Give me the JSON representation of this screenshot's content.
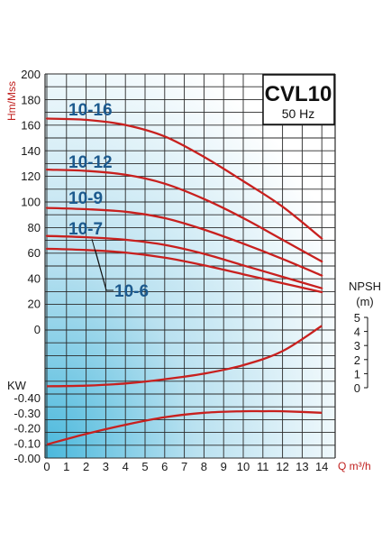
{
  "chart_data": {
    "type": "line",
    "title": "CVL10",
    "subtitle": "50 Hz",
    "xlabel": "Q m³/h",
    "x_ticks": [
      0,
      1,
      2,
      3,
      4,
      5,
      6,
      7,
      8,
      9,
      10,
      11,
      12,
      13,
      14
    ],
    "head_axis": {
      "label": "Hm/Mss",
      "ticks": [
        200,
        180,
        160,
        140,
        120,
        100,
        80,
        60,
        40,
        20,
        0
      ],
      "range": [
        0,
        200
      ],
      "series": [
        {
          "name": "10-16",
          "x": [
            0,
            2,
            4,
            6,
            8,
            10,
            12,
            14
          ],
          "y": [
            165,
            164,
            160,
            151,
            135,
            116,
            96,
            71
          ]
        },
        {
          "name": "10-12",
          "x": [
            0,
            2,
            4,
            6,
            8,
            10,
            12,
            14
          ],
          "y": [
            125,
            124,
            121,
            114,
            102,
            87,
            70,
            53
          ]
        },
        {
          "name": "10-9",
          "x": [
            0,
            2,
            4,
            6,
            8,
            10,
            12,
            14
          ],
          "y": [
            95,
            94,
            92,
            87,
            78,
            67,
            55,
            42
          ]
        },
        {
          "name": "10-7",
          "x": [
            0,
            2,
            4,
            6,
            8,
            10,
            12,
            14
          ],
          "y": [
            73,
            72,
            70,
            66,
            59,
            50,
            41,
            32
          ]
        },
        {
          "name": "10-6",
          "x": [
            0,
            2,
            4,
            6,
            8,
            10,
            12,
            14
          ],
          "y": [
            63,
            62,
            60,
            56,
            50,
            43,
            36,
            29
          ]
        }
      ]
    },
    "npsh_axis": {
      "label": "NPSH (m)",
      "ticks": [
        5,
        4,
        3,
        2,
        1,
        0
      ],
      "range": [
        0,
        5
      ],
      "series": [
        {
          "x": [
            0,
            2,
            4,
            6,
            8,
            10,
            12,
            14
          ],
          "y": [
            0.1,
            0.15,
            0.3,
            0.6,
            1.0,
            1.6,
            2.6,
            4.4
          ]
        }
      ]
    },
    "power_axis": {
      "label": "KW",
      "ticks": [
        "-0.40",
        "-0.30",
        "-0.20",
        "-0.10",
        "-0.00"
      ],
      "range": [
        0,
        0.4
      ],
      "series": [
        {
          "x": [
            0,
            2,
            4,
            6,
            8,
            10,
            11,
            12,
            14
          ],
          "y": [
            0.09,
            0.16,
            0.22,
            0.27,
            0.3,
            0.31,
            0.31,
            0.31,
            0.3
          ]
        }
      ]
    },
    "grid": true,
    "legend": "inline labels"
  },
  "colors": {
    "curve": "#c8201e",
    "model_label": "#1c5a8e",
    "axis_label": "#c0201e",
    "grid": "#2a2a2a",
    "gradient_light": "#ffffff",
    "gradient_dark": "#49b8dc"
  }
}
